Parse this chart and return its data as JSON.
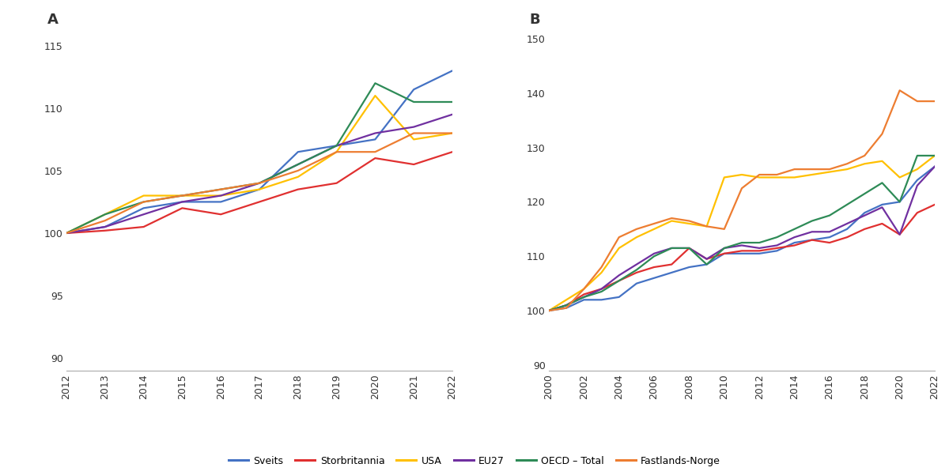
{
  "panel_A": {
    "years": [
      2012,
      2013,
      2014,
      2015,
      2016,
      2017,
      2018,
      2019,
      2020,
      2021,
      2022
    ],
    "Sveits": [
      100,
      100.5,
      102.0,
      102.5,
      102.5,
      103.5,
      106.5,
      107.0,
      107.5,
      111.5,
      113.0
    ],
    "Storbritannia": [
      100,
      100.2,
      100.5,
      102.0,
      101.5,
      102.5,
      103.5,
      104.0,
      106.0,
      105.5,
      106.5
    ],
    "USA": [
      100,
      101.5,
      103.0,
      103.0,
      103.0,
      103.5,
      104.5,
      106.5,
      111.0,
      107.5,
      108.0
    ],
    "EU27": [
      100,
      100.5,
      101.5,
      102.5,
      103.0,
      104.0,
      105.5,
      107.0,
      108.0,
      108.5,
      109.5
    ],
    "OECD_Total": [
      100,
      101.5,
      102.5,
      103.0,
      103.5,
      104.0,
      105.5,
      107.0,
      112.0,
      110.5,
      110.5
    ],
    "Fastlands_Norge": [
      100,
      101.0,
      102.5,
      103.0,
      103.5,
      104.0,
      105.0,
      106.5,
      106.5,
      108.0,
      108.0
    ]
  },
  "panel_B": {
    "years": [
      2000,
      2001,
      2002,
      2003,
      2004,
      2005,
      2006,
      2007,
      2008,
      2009,
      2010,
      2011,
      2012,
      2013,
      2014,
      2015,
      2016,
      2017,
      2018,
      2019,
      2020,
      2021,
      2022
    ],
    "Sveits": [
      100,
      100.5,
      102.0,
      102.0,
      102.5,
      105.0,
      106.0,
      107.0,
      108.0,
      108.5,
      110.5,
      110.5,
      110.5,
      111.0,
      112.5,
      113.0,
      113.5,
      115.0,
      118.0,
      119.5,
      120.0,
      124.0,
      126.5
    ],
    "Storbritannia": [
      100,
      101.0,
      103.0,
      104.0,
      105.5,
      107.0,
      108.0,
      108.5,
      111.5,
      109.5,
      110.5,
      111.0,
      111.0,
      111.5,
      112.0,
      113.0,
      112.5,
      113.5,
      115.0,
      116.0,
      114.0,
      118.0,
      119.5
    ],
    "USA": [
      100,
      102.0,
      104.0,
      107.0,
      111.5,
      113.5,
      115.0,
      116.5,
      116.0,
      115.5,
      124.5,
      125.0,
      124.5,
      124.5,
      124.5,
      125.0,
      125.5,
      126.0,
      127.0,
      127.5,
      124.5,
      126.0,
      128.5
    ],
    "EU27": [
      100,
      101.0,
      102.5,
      104.0,
      106.5,
      108.5,
      110.5,
      111.5,
      111.5,
      109.5,
      111.5,
      112.0,
      111.5,
      112.0,
      113.5,
      114.5,
      114.5,
      116.0,
      117.5,
      119.0,
      114.0,
      123.0,
      126.5
    ],
    "OECD_Total": [
      100,
      101.0,
      102.5,
      103.5,
      105.5,
      107.5,
      110.0,
      111.5,
      111.5,
      108.5,
      111.5,
      112.5,
      112.5,
      113.5,
      115.0,
      116.5,
      117.5,
      119.5,
      121.5,
      123.5,
      120.0,
      128.5,
      128.5
    ],
    "Fastlands_Norge": [
      100,
      100.5,
      104.0,
      108.0,
      113.5,
      115.0,
      116.0,
      117.0,
      116.5,
      115.5,
      115.0,
      122.5,
      125.0,
      125.0,
      126.0,
      126.0,
      126.0,
      127.0,
      128.5,
      132.5,
      140.5,
      138.5,
      138.5
    ]
  },
  "colors": {
    "Sveits": "#4472c4",
    "Storbritannia": "#e03030",
    "USA": "#ffc000",
    "EU27": "#7030a0",
    "OECD_Total": "#2e8b57",
    "Fastlands_Norge": "#ed7d31"
  },
  "legend_labels": {
    "Sveits": "Sveits",
    "Storbritannia": "Storbritannia",
    "USA": "USA",
    "EU27": "EU27",
    "OECD_Total": "OECD – Total",
    "Fastlands_Norge": "Fastlands-Norge"
  },
  "panel_A_ylim": [
    89,
    116
  ],
  "panel_B_ylim": [
    89,
    151
  ],
  "panel_A_yticks": [
    90,
    95,
    100,
    105,
    110,
    115
  ],
  "panel_B_yticks": [
    90,
    100,
    110,
    120,
    130,
    140,
    150
  ],
  "background_color": "#ffffff",
  "label_A": "A",
  "label_B": "B"
}
